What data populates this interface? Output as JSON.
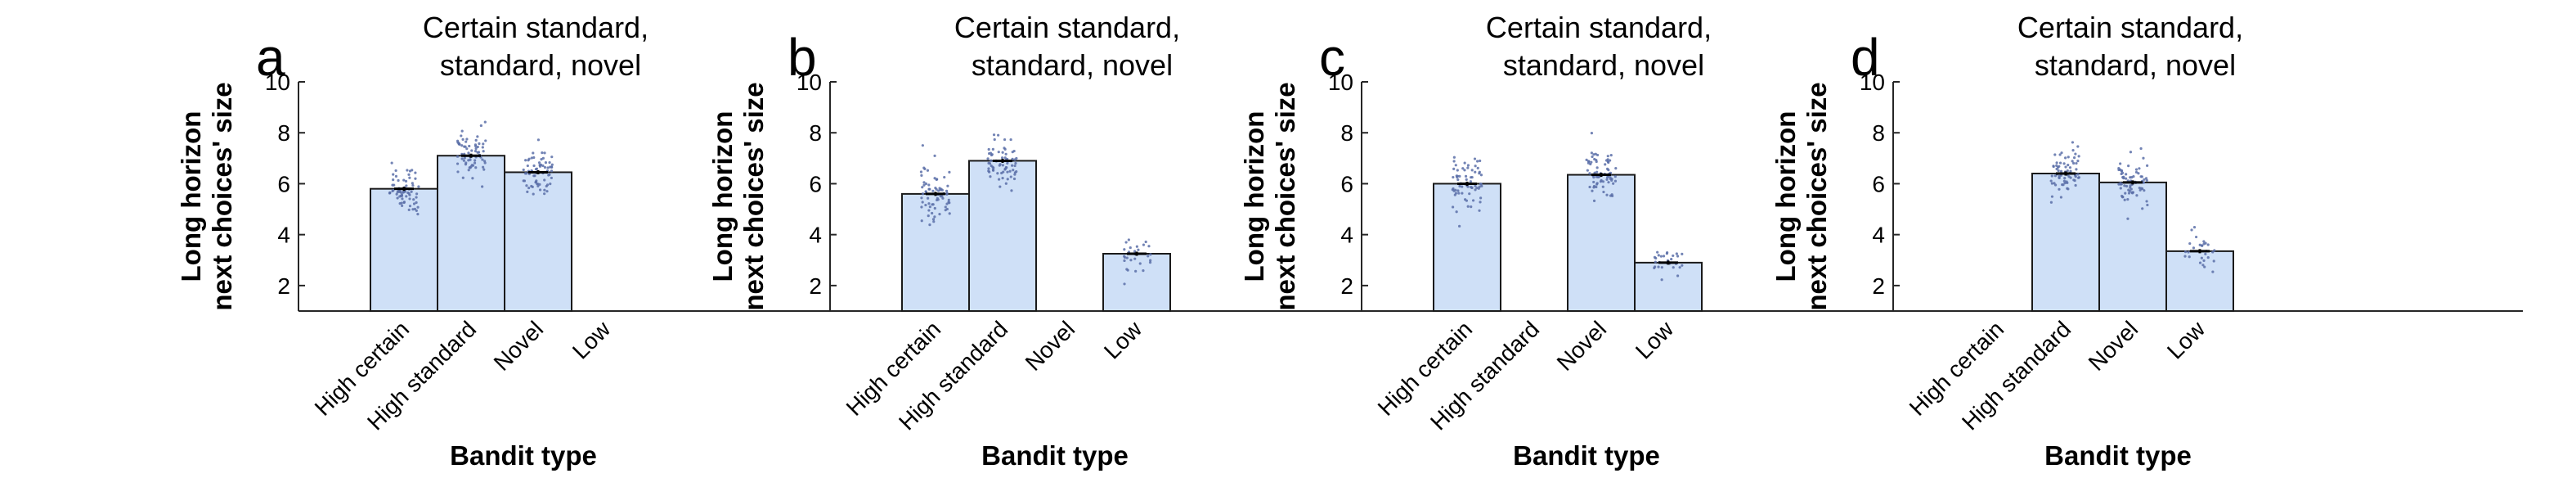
{
  "chart_data": [
    {
      "panel": "a",
      "type": "bar",
      "title": [
        "Certain standard,",
        "standard, novel"
      ],
      "categories": [
        "High certain",
        "High standard",
        "Novel",
        "Low"
      ],
      "values": [
        5.8,
        7.1,
        6.45,
        null
      ],
      "ylabel": [
        "Long horizon",
        "next choices' size"
      ],
      "xlabel": "Bandit type",
      "ylim": [
        1,
        10
      ],
      "yticks": [
        2,
        4,
        6,
        8,
        10
      ]
    },
    {
      "panel": "b",
      "type": "bar",
      "title": [
        "Certain standard,",
        "standard, novel"
      ],
      "categories": [
        "High certain",
        "High standard",
        "Novel",
        "Low"
      ],
      "values": [
        5.6,
        6.9,
        null,
        3.25
      ],
      "ylabel": [
        "Long horizon",
        "next choices' size"
      ],
      "xlabel": "Bandit type",
      "ylim": [
        1,
        10
      ],
      "yticks": [
        2,
        4,
        6,
        8,
        10
      ]
    },
    {
      "panel": "c",
      "type": "bar",
      "title": [
        "Certain standard,",
        "standard, novel"
      ],
      "categories": [
        "High certain",
        "High standard",
        "Novel",
        "Low"
      ],
      "values": [
        6.0,
        null,
        6.35,
        2.9
      ],
      "ylabel": [
        "Long horizon",
        "next choices' size"
      ],
      "xlabel": "Bandit type",
      "ylim": [
        1,
        10
      ],
      "yticks": [
        2,
        4,
        6,
        8,
        10
      ]
    },
    {
      "panel": "d",
      "type": "bar",
      "title": [
        "Certain standard,",
        "standard, novel"
      ],
      "categories": [
        "High certain",
        "High standard",
        "Novel",
        "Low"
      ],
      "values": [
        null,
        6.4,
        6.05,
        3.35
      ],
      "ylabel": [
        "Long horizon",
        "next choices' size"
      ],
      "xlabel": "Bandit type",
      "ylim": [
        1,
        10
      ],
      "yticks": [
        2,
        4,
        6,
        8,
        10
      ]
    }
  ],
  "colors": {
    "bar_fill": "#cfe0f7",
    "bar_edge": "#1a1a1a",
    "points": "#5a6fa8",
    "error": "#000000"
  }
}
